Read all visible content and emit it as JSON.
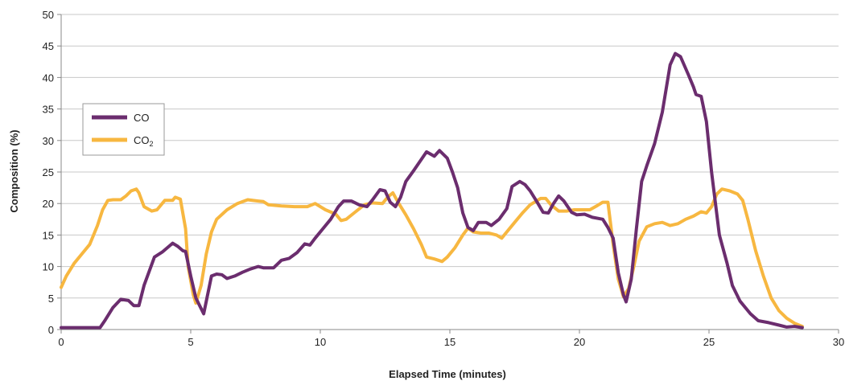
{
  "chart_data": {
    "type": "line",
    "title": "",
    "xlabel": "Elapsed Time (minutes)",
    "ylabel": "Composition (%)",
    "xlim": [
      0,
      30
    ],
    "ylim": [
      0,
      50
    ],
    "xticks": [
      0,
      5,
      10,
      15,
      20,
      25,
      30
    ],
    "yticks": [
      0,
      5,
      10,
      15,
      20,
      25,
      30,
      35,
      40,
      45,
      50
    ],
    "x_tick_labels": [
      "0",
      "5",
      "10",
      "15",
      "20",
      "25",
      "30"
    ],
    "y_tick_labels": [
      "0",
      "5",
      "10",
      "15",
      "20",
      "25",
      "30",
      "35",
      "40",
      "45",
      "50"
    ],
    "grid": "horizontal",
    "legend_position": "upper-left",
    "series": [
      {
        "name": "CO",
        "color": "#6b2d6e",
        "points": [
          [
            0,
            0.3
          ],
          [
            1.5,
            0.3
          ],
          [
            1.7,
            1.5
          ],
          [
            2.0,
            3.5
          ],
          [
            2.3,
            4.8
          ],
          [
            2.6,
            4.6
          ],
          [
            2.8,
            3.8
          ],
          [
            3.0,
            3.8
          ],
          [
            3.2,
            7
          ],
          [
            3.6,
            11.5
          ],
          [
            3.9,
            12.3
          ],
          [
            4.3,
            13.7
          ],
          [
            4.5,
            13.2
          ],
          [
            4.7,
            12.5
          ],
          [
            4.8,
            12.4
          ],
          [
            5.0,
            8.5
          ],
          [
            5.2,
            5
          ],
          [
            5.5,
            2.5
          ],
          [
            5.8,
            8.5
          ],
          [
            6.0,
            8.8
          ],
          [
            6.2,
            8.7
          ],
          [
            6.4,
            8.1
          ],
          [
            6.7,
            8.5
          ],
          [
            7.0,
            9.1
          ],
          [
            7.3,
            9.6
          ],
          [
            7.6,
            10
          ],
          [
            7.8,
            9.8
          ],
          [
            8.2,
            9.8
          ],
          [
            8.5,
            11
          ],
          [
            8.8,
            11.3
          ],
          [
            9.1,
            12.2
          ],
          [
            9.4,
            13.6
          ],
          [
            9.6,
            13.4
          ],
          [
            9.8,
            14.5
          ],
          [
            10.1,
            16
          ],
          [
            10.4,
            17.5
          ],
          [
            10.7,
            19.5
          ],
          [
            10.9,
            20.4
          ],
          [
            11.2,
            20.4
          ],
          [
            11.5,
            19.8
          ],
          [
            11.8,
            19.5
          ],
          [
            12.0,
            20.5
          ],
          [
            12.3,
            22.2
          ],
          [
            12.5,
            22
          ],
          [
            12.7,
            20.2
          ],
          [
            12.9,
            19.5
          ],
          [
            13.1,
            21
          ],
          [
            13.3,
            23.5
          ],
          [
            13.6,
            25.2
          ],
          [
            13.9,
            27
          ],
          [
            14.1,
            28.2
          ],
          [
            14.4,
            27.5
          ],
          [
            14.6,
            28.4
          ],
          [
            14.9,
            27.2
          ],
          [
            15.1,
            25
          ],
          [
            15.3,
            22.5
          ],
          [
            15.5,
            18.5
          ],
          [
            15.7,
            16.2
          ],
          [
            15.9,
            15.7
          ],
          [
            16.1,
            17
          ],
          [
            16.4,
            17
          ],
          [
            16.6,
            16.5
          ],
          [
            16.9,
            17.5
          ],
          [
            17.2,
            19.2
          ],
          [
            17.4,
            22.7
          ],
          [
            17.7,
            23.5
          ],
          [
            17.9,
            23
          ],
          [
            18.1,
            22
          ],
          [
            18.4,
            20
          ],
          [
            18.6,
            18.6
          ],
          [
            18.8,
            18.5
          ],
          [
            19.0,
            20
          ],
          [
            19.2,
            21.2
          ],
          [
            19.4,
            20.4
          ],
          [
            19.7,
            18.6
          ],
          [
            19.9,
            18.2
          ],
          [
            20.2,
            18.3
          ],
          [
            20.5,
            17.8
          ],
          [
            20.9,
            17.5
          ],
          [
            21.1,
            16.2
          ],
          [
            21.3,
            14.5
          ],
          [
            21.5,
            9
          ],
          [
            21.7,
            5.5
          ],
          [
            21.8,
            4.4
          ],
          [
            22.0,
            8
          ],
          [
            22.2,
            16
          ],
          [
            22.4,
            23.5
          ],
          [
            22.6,
            26
          ],
          [
            22.9,
            29.5
          ],
          [
            23.2,
            34.5
          ],
          [
            23.5,
            42
          ],
          [
            23.7,
            43.8
          ],
          [
            23.9,
            43.3
          ],
          [
            24.2,
            40.5
          ],
          [
            24.4,
            38.5
          ],
          [
            24.5,
            37.3
          ],
          [
            24.7,
            37
          ],
          [
            24.9,
            33
          ],
          [
            25.1,
            25
          ],
          [
            25.4,
            15
          ],
          [
            25.7,
            10.5
          ],
          [
            25.9,
            7
          ],
          [
            26.2,
            4.5
          ],
          [
            26.6,
            2.5
          ],
          [
            26.9,
            1.4
          ],
          [
            27.3,
            1.1
          ],
          [
            27.7,
            0.7
          ],
          [
            28.0,
            0.4
          ],
          [
            28.3,
            0.5
          ],
          [
            28.6,
            0.3
          ]
        ]
      },
      {
        "name": "CO2",
        "color": "#f7b740",
        "points": [
          [
            0,
            6.7
          ],
          [
            0.2,
            8.5
          ],
          [
            0.5,
            10.5
          ],
          [
            0.8,
            12
          ],
          [
            1.1,
            13.5
          ],
          [
            1.4,
            16.5
          ],
          [
            1.6,
            19
          ],
          [
            1.8,
            20.5
          ],
          [
            2.0,
            20.6
          ],
          [
            2.3,
            20.6
          ],
          [
            2.5,
            21.2
          ],
          [
            2.7,
            22
          ],
          [
            2.9,
            22.3
          ],
          [
            3.0,
            21.7
          ],
          [
            3.2,
            19.5
          ],
          [
            3.5,
            18.8
          ],
          [
            3.7,
            19
          ],
          [
            4.0,
            20.5
          ],
          [
            4.3,
            20.5
          ],
          [
            4.4,
            21
          ],
          [
            4.6,
            20.7
          ],
          [
            4.8,
            16
          ],
          [
            4.9,
            10
          ],
          [
            5.1,
            5.5
          ],
          [
            5.2,
            4.2
          ],
          [
            5.4,
            7
          ],
          [
            5.6,
            12
          ],
          [
            5.8,
            15.5
          ],
          [
            6.0,
            17.5
          ],
          [
            6.4,
            19
          ],
          [
            6.8,
            20
          ],
          [
            7.2,
            20.6
          ],
          [
            7.6,
            20.4
          ],
          [
            7.8,
            20.3
          ],
          [
            8.0,
            19.8
          ],
          [
            8.5,
            19.6
          ],
          [
            9.0,
            19.5
          ],
          [
            9.5,
            19.5
          ],
          [
            9.8,
            20
          ],
          [
            10.2,
            19
          ],
          [
            10.6,
            18.3
          ],
          [
            10.8,
            17.3
          ],
          [
            11.0,
            17.5
          ],
          [
            11.3,
            18.5
          ],
          [
            11.7,
            19.8
          ],
          [
            12.0,
            20.1
          ],
          [
            12.4,
            20
          ],
          [
            12.6,
            21
          ],
          [
            12.8,
            21.7
          ],
          [
            13.0,
            20.2
          ],
          [
            13.3,
            18.2
          ],
          [
            13.6,
            16
          ],
          [
            13.9,
            13.5
          ],
          [
            14.1,
            11.5
          ],
          [
            14.4,
            11.2
          ],
          [
            14.7,
            10.8
          ],
          [
            14.9,
            11.5
          ],
          [
            15.2,
            13
          ],
          [
            15.5,
            15
          ],
          [
            15.7,
            16.1
          ],
          [
            15.9,
            15.5
          ],
          [
            16.2,
            15.3
          ],
          [
            16.5,
            15.3
          ],
          [
            16.8,
            15
          ],
          [
            17.0,
            14.5
          ],
          [
            17.2,
            15.5
          ],
          [
            17.5,
            17
          ],
          [
            17.8,
            18.5
          ],
          [
            18.1,
            19.8
          ],
          [
            18.5,
            20.8
          ],
          [
            18.7,
            20.8
          ],
          [
            18.9,
            19.8
          ],
          [
            19.2,
            18.8
          ],
          [
            19.5,
            18.8
          ],
          [
            19.8,
            19
          ],
          [
            20.1,
            19
          ],
          [
            20.4,
            19
          ],
          [
            20.7,
            19.7
          ],
          [
            20.9,
            20.2
          ],
          [
            21.1,
            20.2
          ],
          [
            21.3,
            13.5
          ],
          [
            21.5,
            8
          ],
          [
            21.7,
            5.2
          ],
          [
            21.9,
            6.5
          ],
          [
            22.1,
            10
          ],
          [
            22.3,
            14
          ],
          [
            22.6,
            16.3
          ],
          [
            22.9,
            16.8
          ],
          [
            23.2,
            17
          ],
          [
            23.5,
            16.5
          ],
          [
            23.8,
            16.8
          ],
          [
            24.1,
            17.5
          ],
          [
            24.4,
            18
          ],
          [
            24.7,
            18.7
          ],
          [
            24.9,
            18.5
          ],
          [
            25.1,
            19.5
          ],
          [
            25.3,
            21.5
          ],
          [
            25.5,
            22.3
          ],
          [
            25.8,
            22
          ],
          [
            26.1,
            21.5
          ],
          [
            26.3,
            20.5
          ],
          [
            26.5,
            17.5
          ],
          [
            26.8,
            12.5
          ],
          [
            27.1,
            8.5
          ],
          [
            27.4,
            5
          ],
          [
            27.7,
            3
          ],
          [
            28.0,
            1.8
          ],
          [
            28.3,
            1
          ],
          [
            28.6,
            0.5
          ]
        ]
      }
    ]
  },
  "legend": {
    "co_label": "CO",
    "co2_label_main": "CO",
    "co2_label_sub": "2"
  }
}
